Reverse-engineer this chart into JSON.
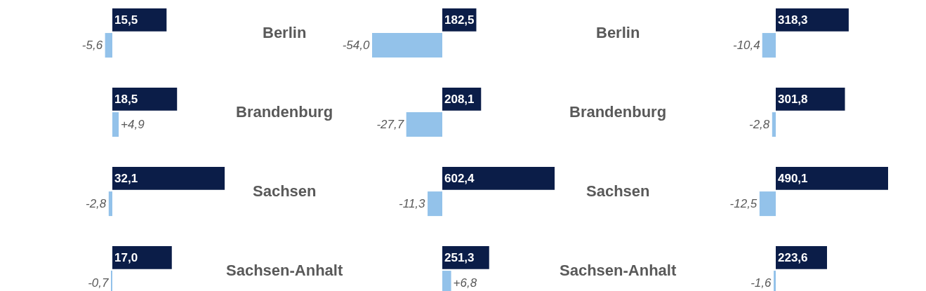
{
  "chart_data": [
    {
      "type": "bar",
      "orientation": "horizontal",
      "categories": [
        null,
        null,
        null,
        null
      ],
      "tick_labels": false,
      "series": [
        {
          "color": "#0b1d48",
          "values": [
            15.5,
            18.5,
            32.1,
            17.0
          ],
          "value_labels": [
            "15,5",
            "18,5",
            "32,1",
            "17,0"
          ]
        }
      ]
    },
    {
      "type": "bar",
      "orientation": "horizontal",
      "categories": [
        null,
        null,
        null,
        null
      ],
      "tick_labels": false,
      "series": [
        {
          "color": "#93c2ea",
          "values": [
            -5.6,
            4.9,
            -2.8,
            -0.7
          ],
          "value_labels": [
            "-5,6",
            "+4,9",
            "-2,8",
            "-0,7"
          ]
        }
      ]
    },
    {
      "type": "bar",
      "orientation": "horizontal",
      "categories": [
        "Berlin",
        "Brandenburg",
        "Sachsen",
        "Sachsen-Anhalt"
      ],
      "tick_labels": "y",
      "series": [
        {
          "color": "#0b1d48",
          "values": [
            182.5,
            208.1,
            602.4,
            251.3
          ],
          "value_labels": [
            "182,5",
            "208,1",
            "602,4",
            "251,3"
          ]
        }
      ]
    },
    {
      "type": "bar",
      "orientation": "horizontal",
      "categories": [
        null,
        null,
        null,
        null
      ],
      "tick_labels": false,
      "series": [
        {
          "color": "#93c2ea",
          "values": [
            -54.0,
            -27.7,
            -11.3,
            6.8
          ],
          "value_labels": [
            "-54,0",
            "-27,7",
            "-11,3",
            "+6,8"
          ]
        }
      ]
    },
    {
      "type": "bar",
      "orientation": "horizontal",
      "categories": [
        "Berlin",
        "Brandenburg",
        "Sachsen",
        "Sachsen-Anhalt"
      ],
      "tick_labels": "y",
      "series": [
        {
          "color": "#0b1d48",
          "values": [
            318.3,
            301.8,
            490.1,
            223.6
          ],
          "value_labels": [
            "318,3",
            "301,8",
            "490,1",
            "223,6"
          ]
        }
      ]
    },
    {
      "type": "bar",
      "orientation": "horizontal",
      "categories": [
        null,
        null,
        null,
        null
      ],
      "tick_labels": false,
      "series": [
        {
          "color": "#93c2ea",
          "values": [
            -10.4,
            -2.8,
            -12.5,
            -1.6
          ],
          "value_labels": [
            "-10,4",
            "-2,8",
            "-12,5",
            "-1,6"
          ]
        }
      ]
    }
  ]
}
